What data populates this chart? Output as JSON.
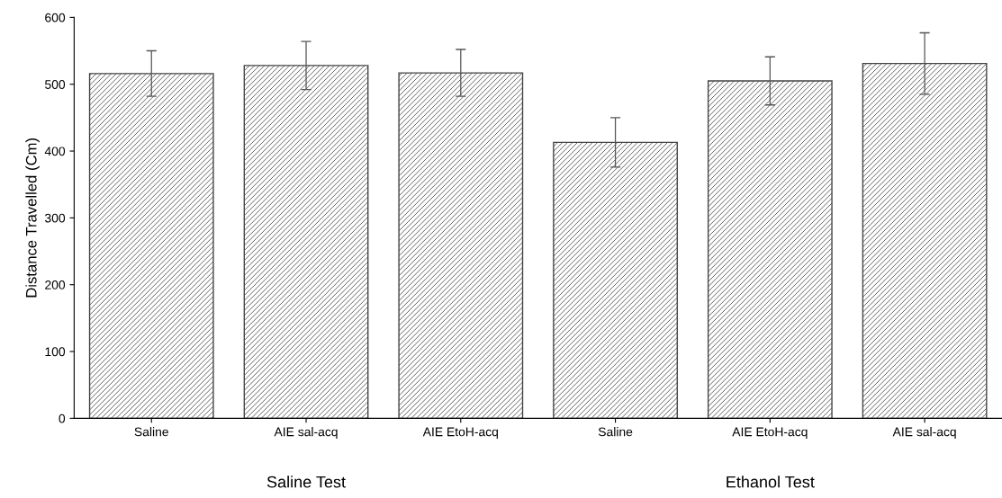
{
  "chart_data": {
    "type": "bar",
    "ylabel": "Distance Travelled (Cm)",
    "categories": [
      "Saline",
      "AIE sal-acq",
      "AIE EtoH-acq",
      "Saline",
      "AIE EtoH-acq",
      "AIE sal-acq"
    ],
    "values": [
      516,
      528,
      517,
      413,
      505,
      531
    ],
    "errors": [
      34,
      36,
      35,
      37,
      36,
      46
    ],
    "color": "#444444",
    "ylim": [
      0,
      600
    ],
    "yticks": [
      0,
      100,
      200,
      300,
      400,
      500,
      600
    ],
    "annotations": [
      "Saline Test",
      "Ethanol Test"
    ],
    "grid": false,
    "legend": false
  }
}
